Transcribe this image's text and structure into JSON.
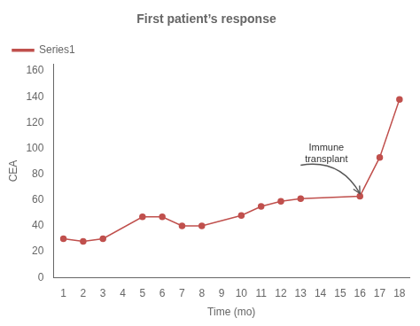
{
  "chart_data": {
    "type": "line",
    "title": "First patient’s response",
    "x_label": "Time (mo)",
    "y_label": "CEA",
    "x": [
      1,
      2,
      3,
      5,
      6,
      7,
      8,
      10,
      11,
      12,
      13,
      16,
      17,
      18
    ],
    "series": [
      {
        "name": "Series1",
        "color": "#c0504d",
        "marker": "circle",
        "values": [
          30,
          28,
          30,
          47,
          47,
          40,
          40,
          48,
          55,
          59,
          61,
          63,
          93,
          138
        ]
      }
    ],
    "xlim": [
      0.5,
      18.5
    ],
    "ylim": [
      0,
      165
    ],
    "xticks": [
      1,
      2,
      3,
      4,
      5,
      6,
      7,
      8,
      9,
      10,
      11,
      12,
      13,
      14,
      15,
      16,
      17,
      18
    ],
    "yticks": [
      0,
      20,
      40,
      60,
      80,
      100,
      120,
      140,
      160
    ],
    "grid": false,
    "legend": "upper left",
    "annotations": [
      {
        "text": "Immune\ntransplant",
        "x": 14.3,
        "y": 88,
        "arrow_from": [
          13.0,
          87
        ],
        "arrow_to": [
          16.0,
          65
        ]
      }
    ]
  }
}
